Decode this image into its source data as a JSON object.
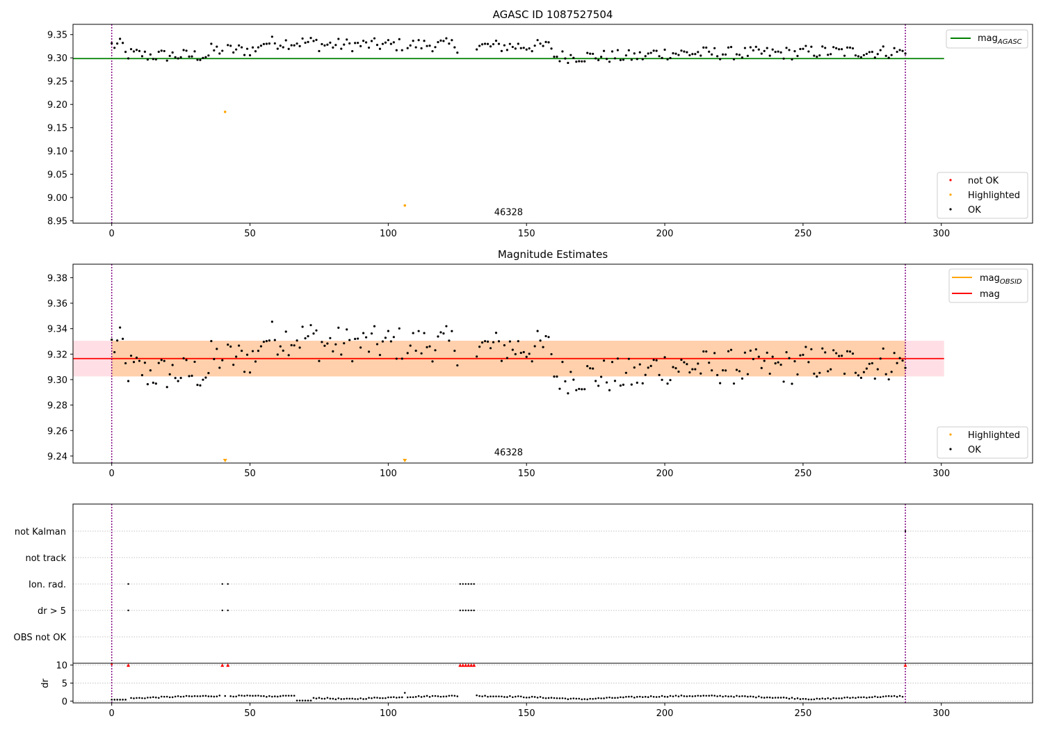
{
  "chart_data": [
    {
      "type": "scatter",
      "title": "AGASC ID 1087527504",
      "xlim": [
        -14,
        333
      ],
      "ylim": [
        8.945,
        9.372
      ],
      "xticks": [
        0,
        50,
        100,
        150,
        200,
        250,
        300
      ],
      "yticks": [
        "8.95",
        "9.00",
        "9.05",
        "9.10",
        "9.15",
        "9.20",
        "9.25",
        "9.30",
        "9.35"
      ],
      "vlines": [
        0,
        287
      ],
      "annotation": {
        "text": "46328",
        "x": 143.5,
        "y": 8.962
      },
      "hlines": [
        {
          "name": "mag_AGASC",
          "y": 9.2985,
          "x": [
            -14,
            301
          ],
          "color": "#008000"
        }
      ],
      "highlighted": [
        [
          41,
          9.184
        ],
        [
          106,
          8.983
        ]
      ],
      "legend_lines": [
        {
          "label": "mag",
          "sub": "AGASC",
          "color": "#008000"
        }
      ],
      "legend_points": [
        {
          "label": "not OK",
          "color": "#ff0000"
        },
        {
          "label": "Highlighted",
          "color": "#ffa500"
        },
        {
          "label": "OK",
          "color": "#000000"
        }
      ]
    },
    {
      "type": "scatter",
      "title": "Magnitude Estimates",
      "xlim": [
        -14,
        333
      ],
      "ylim": [
        9.2345,
        9.3906
      ],
      "xticks": [
        0,
        50,
        100,
        150,
        200,
        250,
        300
      ],
      "yticks": [
        "9.24",
        "9.26",
        "9.28",
        "9.30",
        "9.32",
        "9.34",
        "9.36",
        "9.38"
      ],
      "vlines": [
        0,
        287
      ],
      "annotation": {
        "text": "46328",
        "x": 143.5,
        "y": 9.2405
      },
      "mag": 9.3165,
      "mag_band": [
        9.3025,
        9.3305
      ],
      "band_x": [
        -14,
        301
      ],
      "highlighted_x": [
        41,
        106
      ],
      "legend_lines": [
        {
          "label": "mag",
          "sub": "OBSID",
          "color": "#ffa500"
        },
        {
          "label": "mag",
          "sub": "",
          "color": "#ff0000"
        }
      ],
      "legend_points": [
        {
          "label": "Highlighted",
          "color": "#ffa500"
        },
        {
          "label": "OK",
          "color": "#000000"
        }
      ]
    },
    {
      "type": "scatter",
      "xlim": [
        -14,
        333
      ],
      "xticks": [
        0,
        50,
        100,
        150,
        200,
        250,
        300
      ],
      "flag_labels": [
        "not Kalman",
        "not track",
        "Ion. rad.",
        "dr > 5",
        "OBS not OK"
      ],
      "flags": {
        "not Kalman": [
          287
        ],
        "not track": [],
        "Ion. rad.": [
          6,
          40,
          42,
          126,
          127,
          128,
          129,
          130,
          131
        ],
        "dr > 5": [
          6,
          40,
          42,
          126,
          127,
          128,
          129,
          130,
          131
        ],
        "OBS not OK": []
      },
      "dr": {
        "ylabel": "dr",
        "ylim": [
          -0.5,
          10.5
        ],
        "yticks": [
          0,
          5,
          10
        ],
        "clipped_x": [
          6,
          40,
          42,
          126,
          127,
          128,
          129,
          130,
          131,
          287
        ],
        "clip_value": 10
      }
    }
  ],
  "colors": {
    "ok": "#000000",
    "highlighted": "#ffa500",
    "not_ok": "#ff0000",
    "agasc": "#008000",
    "mag": "#ff0000",
    "band": "#ffc0cb",
    "obsid_band": "#ffa500",
    "vline": "#800080"
  }
}
